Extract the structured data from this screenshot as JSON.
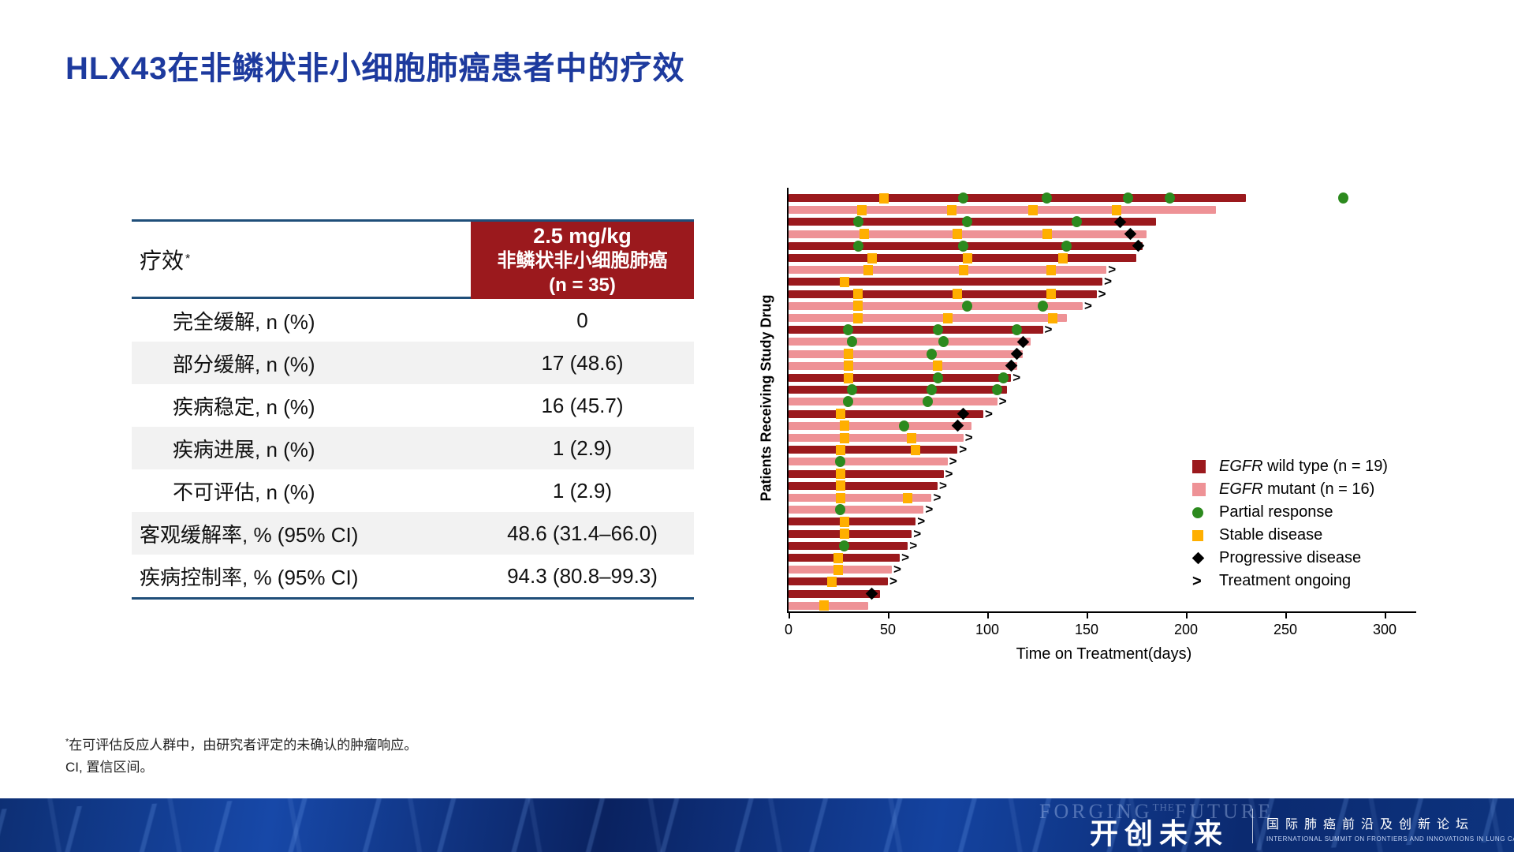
{
  "title": "HLX43在非鳞状非小细胞肺癌患者中的疗效",
  "colors": {
    "title_blue": "#1d3a9e",
    "table_border_blue": "#1f4e79",
    "header_red": "#9b191d",
    "row_alt_gray": "#f2f2f2",
    "band_navy": "#0d2f74"
  },
  "table": {
    "header_left": "疗效",
    "header_left_sup": "*",
    "header_right_lines": [
      "2.5 mg/kg",
      "非鳞状非小细胞肺癌",
      "(n = 35)"
    ],
    "rows": [
      {
        "label": "完全缓解, n (%)",
        "value": "0",
        "indent": true
      },
      {
        "label": "部分缓解, n (%)",
        "value": "17 (48.6)",
        "indent": true
      },
      {
        "label": "疾病稳定, n (%)",
        "value": "16 (45.7)",
        "indent": true
      },
      {
        "label": "疾病进展, n (%)",
        "value": "1 (2.9)",
        "indent": true
      },
      {
        "label": "不可评估, n (%)",
        "value": "1 (2.9)",
        "indent": true
      },
      {
        "label": "客观缓解率, % (95% CI)",
        "value": "48.6 (31.4–66.0)",
        "indent": false
      },
      {
        "label": "疾病控制率, % (95% CI)",
        "value": "94.3 (80.8–99.3)",
        "indent": false
      }
    ]
  },
  "chart_data": {
    "type": "bar",
    "subtype": "swimmer",
    "title": "",
    "xlabel": "Time on Treatment(days)",
    "ylabel": "Patients Receiving Study Drug",
    "x_ticks": [
      0,
      50,
      100,
      150,
      200,
      250,
      300
    ],
    "xlim": [
      0,
      310
    ],
    "grid": false,
    "legend_position": "inside-right",
    "ongoing_glyph": ">",
    "colors": {
      "wild": "#9b191d",
      "mutant": "#ee9296",
      "pr": "#2c8a1e",
      "sd": "#ffaf00",
      "pd": "#000000"
    },
    "legend": [
      {
        "swatch": "square",
        "color": "wild",
        "italic": "EGFR",
        "text": " wild type (n = 19)"
      },
      {
        "swatch": "square",
        "color": "mutant",
        "italic": "EGFR",
        "text": " mutant (n = 16)"
      },
      {
        "swatch": "circle",
        "color": "pr",
        "italic": "",
        "text": "Partial response"
      },
      {
        "swatch": "square-small",
        "color": "sd",
        "italic": "",
        "text": "Stable disease"
      },
      {
        "swatch": "diamond",
        "color": "pd",
        "italic": "",
        "text": "Progressive disease"
      },
      {
        "swatch": "arrow",
        "color": "pd",
        "italic": "",
        "text": "Treatment ongoing"
      }
    ],
    "patients": [
      {
        "group": "wild",
        "days": 230,
        "sd": [
          48
        ],
        "pr": [
          88,
          130,
          171,
          192
        ],
        "pd": null,
        "ongoing": false,
        "extra_pr": [
          279
        ]
      },
      {
        "group": "mutant",
        "days": 215,
        "sd": [
          37,
          82,
          123,
          165
        ],
        "pr": [],
        "pd": null,
        "ongoing": false
      },
      {
        "group": "wild",
        "days": 185,
        "sd": [],
        "pr": [
          35,
          90,
          145
        ],
        "pd": 167,
        "ongoing": false
      },
      {
        "group": "mutant",
        "days": 180,
        "sd": [
          38,
          85,
          130
        ],
        "pr": [],
        "pd": 172,
        "ongoing": false
      },
      {
        "group": "wild",
        "days": 178,
        "sd": [],
        "pr": [
          35,
          88,
          140
        ],
        "pd": 176,
        "ongoing": false
      },
      {
        "group": "wild",
        "days": 175,
        "sd": [
          42,
          90,
          138
        ],
        "pr": [],
        "pd": null,
        "ongoing": false
      },
      {
        "group": "mutant",
        "days": 160,
        "sd": [
          40,
          88,
          132
        ],
        "pr": [],
        "pd": null,
        "ongoing": true
      },
      {
        "group": "wild",
        "days": 158,
        "sd": [
          28
        ],
        "pr": [],
        "pd": null,
        "ongoing": true
      },
      {
        "group": "wild",
        "days": 155,
        "sd": [
          35,
          85,
          132
        ],
        "pr": [],
        "pd": null,
        "ongoing": true
      },
      {
        "group": "mutant",
        "days": 148,
        "sd": [
          35
        ],
        "pr": [
          90,
          128
        ],
        "pd": null,
        "ongoing": true
      },
      {
        "group": "mutant",
        "days": 140,
        "sd": [
          35,
          80,
          133
        ],
        "pr": [],
        "pd": null,
        "ongoing": false
      },
      {
        "group": "wild",
        "days": 128,
        "sd": [],
        "pr": [
          30,
          75,
          115
        ],
        "pd": null,
        "ongoing": true
      },
      {
        "group": "mutant",
        "days": 122,
        "sd": [],
        "pr": [
          32,
          78
        ],
        "pd": 118,
        "ongoing": false
      },
      {
        "group": "mutant",
        "days": 118,
        "sd": [
          30
        ],
        "pr": [
          72
        ],
        "pd": 115,
        "ongoing": false
      },
      {
        "group": "mutant",
        "days": 115,
        "sd": [
          30,
          75
        ],
        "pr": [],
        "pd": 112,
        "ongoing": false
      },
      {
        "group": "wild",
        "days": 112,
        "sd": [
          30
        ],
        "pr": [
          75,
          108
        ],
        "pd": null,
        "ongoing": true
      },
      {
        "group": "wild",
        "days": 110,
        "sd": [],
        "pr": [
          32,
          72,
          105
        ],
        "pd": null,
        "ongoing": false
      },
      {
        "group": "mutant",
        "days": 105,
        "sd": [],
        "pr": [
          30,
          70
        ],
        "pd": null,
        "ongoing": true
      },
      {
        "group": "wild",
        "days": 98,
        "sd": [
          26
        ],
        "pr": [],
        "pd": 88,
        "ongoing": true
      },
      {
        "group": "mutant",
        "days": 92,
        "sd": [
          28
        ],
        "pr": [
          58
        ],
        "pd": 85,
        "ongoing": false
      },
      {
        "group": "mutant",
        "days": 88,
        "sd": [
          28,
          62
        ],
        "pr": [],
        "pd": null,
        "ongoing": true
      },
      {
        "group": "wild",
        "days": 85,
        "sd": [
          26,
          64
        ],
        "pr": [],
        "pd": null,
        "ongoing": true
      },
      {
        "group": "mutant",
        "days": 80,
        "sd": [],
        "pr": [
          26
        ],
        "pd": null,
        "ongoing": true
      },
      {
        "group": "wild",
        "days": 78,
        "sd": [
          26
        ],
        "pr": [],
        "pd": null,
        "ongoing": true
      },
      {
        "group": "wild",
        "days": 75,
        "sd": [
          26
        ],
        "pr": [],
        "pd": null,
        "ongoing": true
      },
      {
        "group": "mutant",
        "days": 72,
        "sd": [
          26,
          60
        ],
        "pr": [],
        "pd": null,
        "ongoing": true
      },
      {
        "group": "mutant",
        "days": 68,
        "sd": [],
        "pr": [
          26
        ],
        "pd": null,
        "ongoing": true
      },
      {
        "group": "wild",
        "days": 64,
        "sd": [
          28
        ],
        "pr": [],
        "pd": null,
        "ongoing": true
      },
      {
        "group": "wild",
        "days": 62,
        "sd": [
          28
        ],
        "pr": [],
        "pd": null,
        "ongoing": true
      },
      {
        "group": "wild",
        "days": 60,
        "sd": [],
        "pr": [
          28
        ],
        "pd": null,
        "ongoing": true
      },
      {
        "group": "wild",
        "days": 56,
        "sd": [
          25
        ],
        "pr": [],
        "pd": null,
        "ongoing": true
      },
      {
        "group": "mutant",
        "days": 52,
        "sd": [
          25
        ],
        "pr": [],
        "pd": null,
        "ongoing": true
      },
      {
        "group": "wild",
        "days": 50,
        "sd": [
          22
        ],
        "pr": [],
        "pd": null,
        "ongoing": true
      },
      {
        "group": "wild",
        "days": 46,
        "sd": [],
        "pr": [],
        "pd": 42,
        "ongoing": false
      },
      {
        "group": "mutant",
        "days": 40,
        "sd": [
          18
        ],
        "pr": [],
        "pd": null,
        "ongoing": false
      }
    ]
  },
  "footnotes": {
    "star": "*",
    "line1": "在可评估反应人群中，由研究者评定的未确认的肿瘤响应。",
    "line2": "CI, 置信区间。"
  },
  "footer": {
    "ghost_left": "FORGING",
    "ghost_mid": "THE",
    "ghost_right": "FUTURE",
    "brand": "开创未来",
    "tagline_cn": "国际肺癌前沿及创新论坛",
    "tagline_en": "INTERNATIONAL SUMMIT ON FRONTIERS AND INNOVATIONS IN LUNG CANCER"
  }
}
